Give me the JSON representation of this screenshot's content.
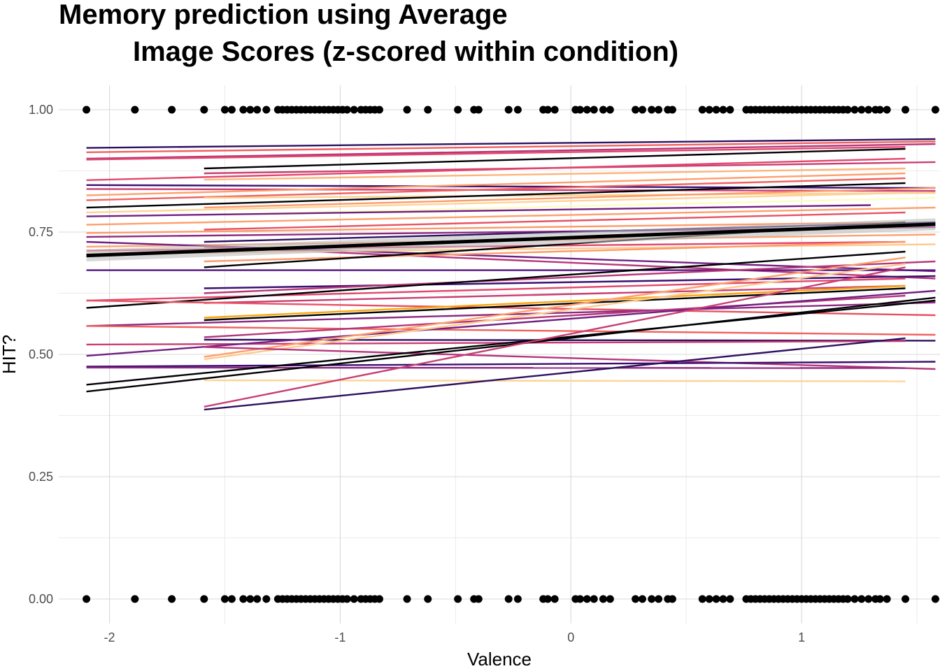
{
  "chart_data": {
    "type": "scatter",
    "title_lines": [
      "Memory prediction using Average",
      "Image Scores (z-scored within condition)"
    ],
    "xlabel": "Valence",
    "ylabel": "HIT?",
    "xlim": [
      -2.22,
      1.6
    ],
    "ylim": [
      -0.05,
      1.05
    ],
    "x_ticks": [
      {
        "value": -2,
        "label": "-2"
      },
      {
        "value": -1,
        "label": "-1"
      },
      {
        "value": 0,
        "label": "0"
      },
      {
        "value": 1,
        "label": "1"
      }
    ],
    "y_ticks": [
      {
        "value": 0.0,
        "label": "0.00"
      },
      {
        "value": 0.25,
        "label": "0.25"
      },
      {
        "value": 0.5,
        "label": "0.50"
      },
      {
        "value": 0.75,
        "label": "0.75"
      },
      {
        "value": 1.0,
        "label": "1.00"
      }
    ],
    "grid": true,
    "points_x": [
      -2.1,
      -1.89,
      -1.73,
      -1.59,
      -1.5,
      -1.47,
      -1.42,
      -1.39,
      -1.36,
      -1.32,
      -1.27,
      -1.25,
      -1.23,
      -1.21,
      -1.19,
      -1.17,
      -1.15,
      -1.13,
      -1.11,
      -1.09,
      -1.07,
      -1.05,
      -1.03,
      -1.01,
      -0.99,
      -0.97,
      -0.94,
      -0.91,
      -0.89,
      -0.87,
      -0.85,
      -0.83,
      -0.71,
      -0.62,
      -0.49,
      -0.42,
      -0.4,
      -0.27,
      -0.23,
      -0.12,
      -0.1,
      -0.07,
      0.02,
      0.04,
      0.07,
      0.1,
      0.14,
      0.17,
      0.28,
      0.31,
      0.35,
      0.38,
      0.42,
      0.44,
      0.57,
      0.6,
      0.63,
      0.66,
      0.69,
      0.76,
      0.78,
      0.8,
      0.82,
      0.84,
      0.86,
      0.88,
      0.9,
      0.92,
      0.94,
      0.96,
      0.98,
      1.0,
      1.02,
      1.04,
      1.06,
      1.08,
      1.1,
      1.12,
      1.14,
      1.16,
      1.18,
      1.2,
      1.23,
      1.26,
      1.29,
      1.32,
      1.34,
      1.37,
      1.45,
      1.58
    ],
    "points_y": [
      0,
      1
    ],
    "series_lines": [
      {
        "x0": -2.1,
        "y0": 0.922,
        "x1": 1.58,
        "y1": 0.94,
        "color": "#2d1160"
      },
      {
        "x0": -2.1,
        "y0": 0.913,
        "x1": 1.58,
        "y1": 0.935,
        "color": "#f1605d"
      },
      {
        "x0": -2.1,
        "y0": 0.9,
        "x1": 1.58,
        "y1": 0.93,
        "color": "#b5367a"
      },
      {
        "x0": -2.1,
        "y0": 0.898,
        "x1": 1.45,
        "y1": 0.924,
        "color": "#e3466c"
      },
      {
        "x0": -1.59,
        "y0": 0.88,
        "x1": 1.45,
        "y1": 0.92,
        "color": "#000004"
      },
      {
        "x0": -1.59,
        "y0": 0.87,
        "x1": 1.58,
        "y1": 0.893,
        "color": "#c83e73"
      },
      {
        "x0": -2.1,
        "y0": 0.856,
        "x1": 1.45,
        "y1": 0.9,
        "color": "#e3466c"
      },
      {
        "x0": -1.59,
        "y0": 0.857,
        "x1": 1.45,
        "y1": 0.88,
        "color": "#feb47b"
      },
      {
        "x0": -2.1,
        "y0": 0.846,
        "x1": 1.58,
        "y1": 0.84,
        "color": "#3b0f70"
      },
      {
        "x0": -2.1,
        "y0": 0.838,
        "x1": 1.58,
        "y1": 0.834,
        "color": "#c83e73"
      },
      {
        "x0": -2.1,
        "y0": 0.825,
        "x1": 1.45,
        "y1": 0.87,
        "color": "#fe9f6d"
      },
      {
        "x0": -2.1,
        "y0": 0.815,
        "x1": 1.45,
        "y1": 0.86,
        "color": "#f1605d"
      },
      {
        "x0": -1.59,
        "y0": 0.82,
        "x1": 1.58,
        "y1": 0.83,
        "color": "#fbd18e"
      },
      {
        "x0": -2.1,
        "y0": 0.8,
        "x1": 1.45,
        "y1": 0.85,
        "color": "#000004"
      },
      {
        "x0": -1.59,
        "y0": 0.8,
        "x1": 1.58,
        "y1": 0.84,
        "color": "#fd9a6a"
      },
      {
        "x0": -2.1,
        "y0": 0.79,
        "x1": 1.45,
        "y1": 0.83,
        "color": "#fed395"
      },
      {
        "x0": -1.59,
        "y0": 0.785,
        "x1": 1.58,
        "y1": 0.82,
        "color": "#fcfdbf"
      },
      {
        "x0": -2.1,
        "y0": 0.782,
        "x1": 1.3,
        "y1": 0.805,
        "color": "#721f81"
      },
      {
        "x0": -2.1,
        "y0": 0.765,
        "x1": 1.58,
        "y1": 0.8,
        "color": "#fe9f6d"
      },
      {
        "x0": -1.59,
        "y0": 0.755,
        "x1": 1.45,
        "y1": 0.79,
        "color": "#e75263"
      },
      {
        "x0": -2.1,
        "y0": 0.748,
        "x1": 1.45,
        "y1": 0.77,
        "color": "#fd9a6a"
      },
      {
        "x0": -2.1,
        "y0": 0.74,
        "x1": 1.58,
        "y1": 0.76,
        "color": "#8c2981"
      },
      {
        "x0": -1.59,
        "y0": 0.73,
        "x1": 1.58,
        "y1": 0.77,
        "color": "#2d1160"
      },
      {
        "x0": -2.1,
        "y0": 0.72,
        "x1": 1.58,
        "y1": 0.745,
        "color": "#fea16e"
      },
      {
        "x0": -2.1,
        "y0": 0.712,
        "x1": 1.45,
        "y1": 0.73,
        "color": "#e3466c"
      },
      {
        "x0": -2.1,
        "y0": 0.73,
        "x1": 1.58,
        "y1": 0.67,
        "color": "#721f81"
      },
      {
        "x0": -1.59,
        "y0": 0.72,
        "x1": 1.58,
        "y1": 0.655,
        "color": "#b5367a"
      },
      {
        "x0": -2.1,
        "y0": 0.705,
        "x1": 1.58,
        "y1": 0.725,
        "color": "#feca8d"
      },
      {
        "x0": -1.59,
        "y0": 0.69,
        "x1": 1.45,
        "y1": 0.73,
        "color": "#fd9a6a"
      },
      {
        "x0": -2.1,
        "y0": 0.672,
        "x1": 1.58,
        "y1": 0.672,
        "color": "#51127c"
      },
      {
        "x0": -1.59,
        "y0": 0.678,
        "x1": 1.45,
        "y1": 0.77,
        "color": "#000004"
      },
      {
        "x0": -1.59,
        "y0": 0.635,
        "x1": 1.58,
        "y1": 0.66,
        "color": "#3b0f70"
      },
      {
        "x0": -1.59,
        "y0": 0.625,
        "x1": 1.58,
        "y1": 0.69,
        "color": "#b73779"
      },
      {
        "x0": -2.1,
        "y0": 0.61,
        "x1": 1.45,
        "y1": 0.655,
        "color": "#e3466c"
      },
      {
        "x0": -1.59,
        "y0": 0.605,
        "x1": 1.45,
        "y1": 0.64,
        "color": "#c83e73"
      },
      {
        "x0": -2.1,
        "y0": 0.595,
        "x1": 1.45,
        "y1": 0.71,
        "color": "#000004"
      },
      {
        "x0": -2.1,
        "y0": 0.61,
        "x1": 1.58,
        "y1": 0.58,
        "color": "#e75263"
      },
      {
        "x0": -1.59,
        "y0": 0.575,
        "x1": 1.45,
        "y1": 0.64,
        "color": "#fca50a"
      },
      {
        "x0": -1.59,
        "y0": 0.57,
        "x1": 1.45,
        "y1": 0.635,
        "color": "#000004"
      },
      {
        "x0": -2.1,
        "y0": 0.558,
        "x1": 1.58,
        "y1": 0.606,
        "color": "#8c2981"
      },
      {
        "x0": -2.1,
        "y0": 0.558,
        "x1": 1.58,
        "y1": 0.54,
        "color": "#f1605d"
      },
      {
        "x0": -1.59,
        "y0": 0.535,
        "x1": 1.45,
        "y1": 0.62,
        "color": "#b5367a"
      },
      {
        "x0": -1.59,
        "y0": 0.53,
        "x1": 1.58,
        "y1": 0.528,
        "color": "#2d1160"
      },
      {
        "x0": -2.1,
        "y0": 0.52,
        "x1": 1.45,
        "y1": 0.527,
        "color": "#c83e73"
      },
      {
        "x0": -2.1,
        "y0": 0.497,
        "x1": 1.58,
        "y1": 0.63,
        "color": "#721f81"
      },
      {
        "x0": -1.59,
        "y0": 0.495,
        "x1": 1.45,
        "y1": 0.698,
        "color": "#fe9f6d"
      },
      {
        "x0": -1.59,
        "y0": 0.49,
        "x1": 1.45,
        "y1": 0.685,
        "color": "#feca8d"
      },
      {
        "x0": -1.59,
        "y0": 0.515,
        "x1": 1.58,
        "y1": 0.47,
        "color": "#b5367a"
      },
      {
        "x0": -2.1,
        "y0": 0.475,
        "x1": 1.58,
        "y1": 0.485,
        "color": "#3b0f70"
      },
      {
        "x0": -2.1,
        "y0": 0.473,
        "x1": 1.45,
        "y1": 0.472,
        "color": "#8c2981"
      },
      {
        "x0": -1.59,
        "y0": 0.447,
        "x1": 1.45,
        "y1": 0.445,
        "color": "#fed395"
      },
      {
        "x0": -2.1,
        "y0": 0.438,
        "x1": 1.58,
        "y1": 0.61,
        "color": "#000004"
      },
      {
        "x0": -2.1,
        "y0": 0.424,
        "x1": 1.58,
        "y1": 0.616,
        "color": "#000004"
      },
      {
        "x0": -1.59,
        "y0": 0.393,
        "x1": 1.45,
        "y1": 0.678,
        "color": "#c83e73"
      },
      {
        "x0": -1.59,
        "y0": 0.387,
        "x1": 1.45,
        "y1": 0.533,
        "color": "#2d1160"
      }
    ],
    "overall_fit": {
      "x0": -2.1,
      "y0": 0.702,
      "x1": 1.58,
      "y1": 0.766,
      "color": "#000000"
    }
  }
}
